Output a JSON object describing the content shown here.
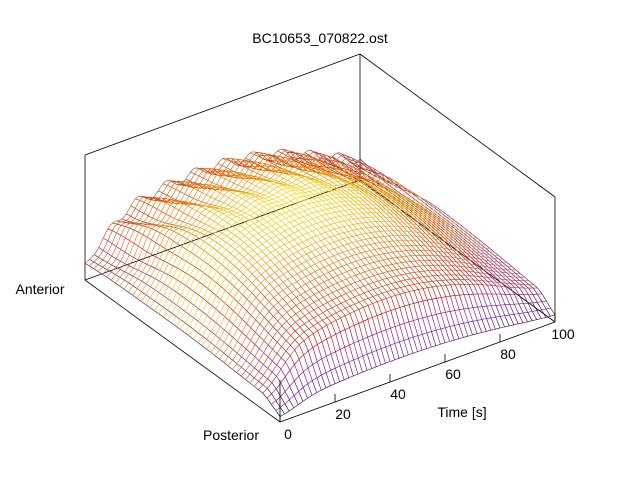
{
  "chart_data": {
    "type": "surface",
    "title": "BC10653_070822.ost",
    "x_axis": {
      "label": "Time [s]",
      "range": [
        0,
        100
      ],
      "ticks": [
        0,
        20,
        40,
        60,
        80,
        100
      ]
    },
    "y_axis": {
      "labels": [
        "Anterior",
        "Posterior"
      ]
    },
    "z_axis": {
      "labels": []
    },
    "grid": false,
    "legend": "none",
    "colormap": [
      "#000000",
      "#7a00c0",
      "#b00000",
      "#e07000",
      "#ffff00"
    ]
  }
}
